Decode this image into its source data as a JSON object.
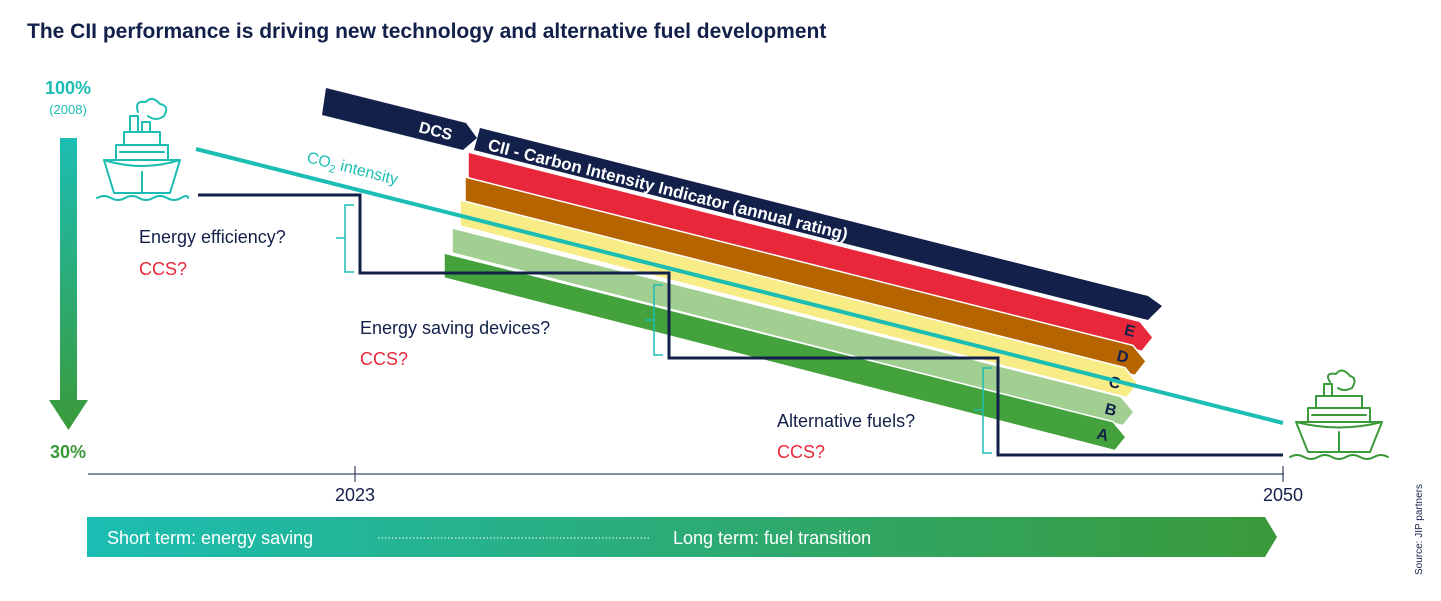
{
  "title": "The CII performance is driving new technology and alternative fuel development",
  "left_scale": {
    "top_value": "100%",
    "top_note": "(2008)",
    "bottom_value": "30%"
  },
  "co2_label_prefix": "CO",
  "co2_label_sub": "2",
  "co2_label_suffix": " intensity",
  "dcs_label": "DCS",
  "cii_label": "CII - Carbon Intensity Indicator (annual rating)",
  "ratings": [
    {
      "letter": "E",
      "color": "#e8283a"
    },
    {
      "letter": "D",
      "color": "#b56400"
    },
    {
      "letter": "C",
      "color": "#f7ec86"
    },
    {
      "letter": "B",
      "color": "#a0cf91"
    },
    {
      "letter": "A",
      "color": "#44a23c"
    }
  ],
  "measures": [
    {
      "question": "Energy efficiency?",
      "ccs": "CCS?"
    },
    {
      "question": "Energy saving devices?",
      "ccs": "CCS?"
    },
    {
      "question": "Alternative fuels?",
      "ccs": "CCS?"
    }
  ],
  "axis": {
    "start_year": "2023",
    "end_year": "2050"
  },
  "timeline": {
    "short_term": "Short term: energy saving",
    "long_term": "Long term: fuel transition"
  },
  "source": "Source: JIP partners",
  "colors": {
    "navy": "#12204a",
    "teal": "#1cbdb3",
    "green": "#3a9a3a",
    "red": "#e8283a"
  },
  "icons": [
    "ship-icon-start",
    "ship-icon-end"
  ]
}
